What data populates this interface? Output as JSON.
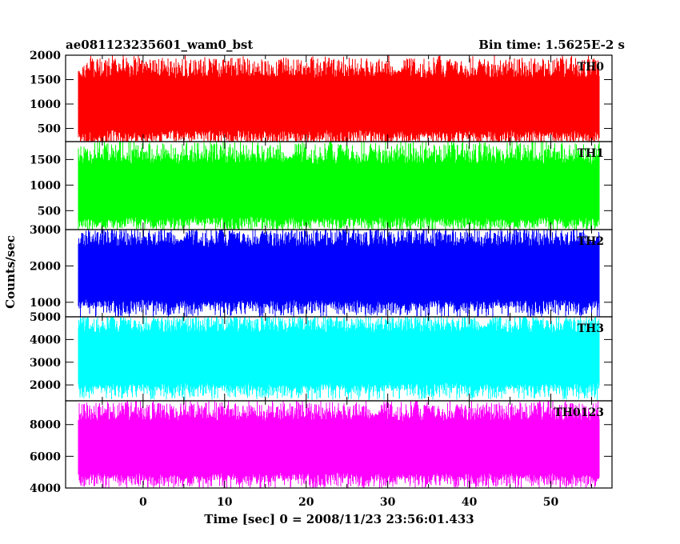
{
  "header": {
    "left_title": "ae081123235601_wam0_bst",
    "right_title": "Bin time: 1.5625E-2 s"
  },
  "chart_data": {
    "type": "line",
    "grid": false,
    "x_axis": {
      "label": "Time [sec] 0 = 2008/11/23 23:56:01.433",
      "range": [
        -9.5,
        57.5
      ],
      "ticks": [
        0,
        10,
        20,
        30,
        40,
        50
      ],
      "tick_labels": [
        "0",
        "10",
        "20",
        "30",
        "40",
        "50"
      ],
      "data_range": [
        -8,
        56
      ],
      "bin_time": 0.015625
    },
    "y_axis_label": "Counts/sec",
    "panels": [
      {
        "name": "TH0",
        "color": "#ff0000",
        "ylim": [
          230,
          2000
        ],
        "ticks": [
          500,
          1000,
          1500,
          2000
        ],
        "tick_labels": [
          "500",
          "1000",
          "1500",
          "2000"
        ],
        "mean": 1000,
        "min": 180,
        "max": 1950
      },
      {
        "name": "TH1",
        "color": "#00ff00",
        "ylim": [
          130,
          1850
        ],
        "ticks": [
          500,
          1000,
          1500
        ],
        "tick_labels": [
          "500",
          "1000",
          "1500"
        ],
        "mean": 900,
        "min": 150,
        "max": 1850
      },
      {
        "name": "TH2",
        "color": "#0000ff",
        "ylim": [
          600,
          3000
        ],
        "ticks": [
          1000,
          2000,
          3000
        ],
        "tick_labels": [
          "1000",
          "2000",
          "3000"
        ],
        "mean": 1800,
        "min": 600,
        "max": 3000
      },
      {
        "name": "TH3",
        "color": "#00ffff",
        "ylim": [
          1300,
          5000
        ],
        "ticks": [
          2000,
          3000,
          4000,
          5000
        ],
        "tick_labels": [
          "2000",
          "3000",
          "4000",
          "5000"
        ],
        "mean": 3200,
        "min": 1350,
        "max": 5000
      },
      {
        "name": "TH0123",
        "color": "#ff00ff",
        "ylim": [
          4000,
          9500
        ],
        "ticks": [
          4000,
          6000,
          8000
        ],
        "tick_labels": [
          "4000",
          "6000",
          "8000"
        ],
        "mean": 6600,
        "min": 4000,
        "max": 9400
      }
    ]
  }
}
